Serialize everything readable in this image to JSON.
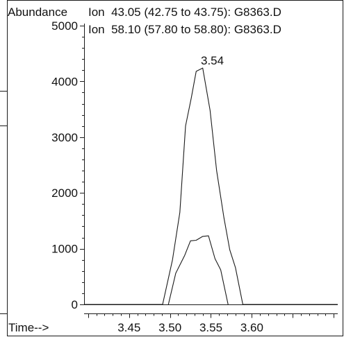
{
  "chart_data": {
    "type": "line",
    "ylabel": "Abundance",
    "xlabel": "Time-->",
    "xlim": [
      3.395,
      3.705
    ],
    "ylim": [
      0,
      5000
    ],
    "x_ticks": [
      3.45,
      3.5,
      3.55,
      3.6
    ],
    "x_tick_labels": [
      "3.45",
      "3.50",
      "3.55",
      "3.60"
    ],
    "y_ticks": [
      0,
      1000,
      2000,
      3000,
      4000,
      5000
    ],
    "y_tick_labels": [
      "0",
      "1000",
      "2000",
      "3000",
      "4000",
      "5000"
    ],
    "legend": [
      "Ion  43.05 (42.75 to 43.75): G8363.D",
      "Ion  58.10 (57.80 to 58.80): G8363.D"
    ],
    "annotations": [
      {
        "text": "3.54",
        "x": 3.535,
        "y": 4250
      }
    ],
    "series": [
      {
        "name": "Ion  43.05 (42.75 to 43.75): G8363.D",
        "points": [
          [
            3.395,
            0
          ],
          [
            3.491,
            0
          ],
          [
            3.503,
            800
          ],
          [
            3.512,
            1650
          ],
          [
            3.519,
            3200
          ],
          [
            3.526,
            3700
          ],
          [
            3.532,
            4180
          ],
          [
            3.54,
            4240
          ],
          [
            3.549,
            3480
          ],
          [
            3.557,
            2400
          ],
          [
            3.566,
            1550
          ],
          [
            3.573,
            980
          ],
          [
            3.58,
            660
          ],
          [
            3.589,
            0
          ],
          [
            3.705,
            0
          ]
        ]
      },
      {
        "name": "Ion  58.10 (57.80 to 58.80): G8363.D",
        "points": [
          [
            3.498,
            0
          ],
          [
            3.507,
            560
          ],
          [
            3.518,
            880
          ],
          [
            3.525,
            1140
          ],
          [
            3.532,
            1150
          ],
          [
            3.54,
            1220
          ],
          [
            3.547,
            1230
          ],
          [
            3.555,
            820
          ],
          [
            3.562,
            620
          ],
          [
            3.571,
            0
          ]
        ]
      }
    ]
  }
}
